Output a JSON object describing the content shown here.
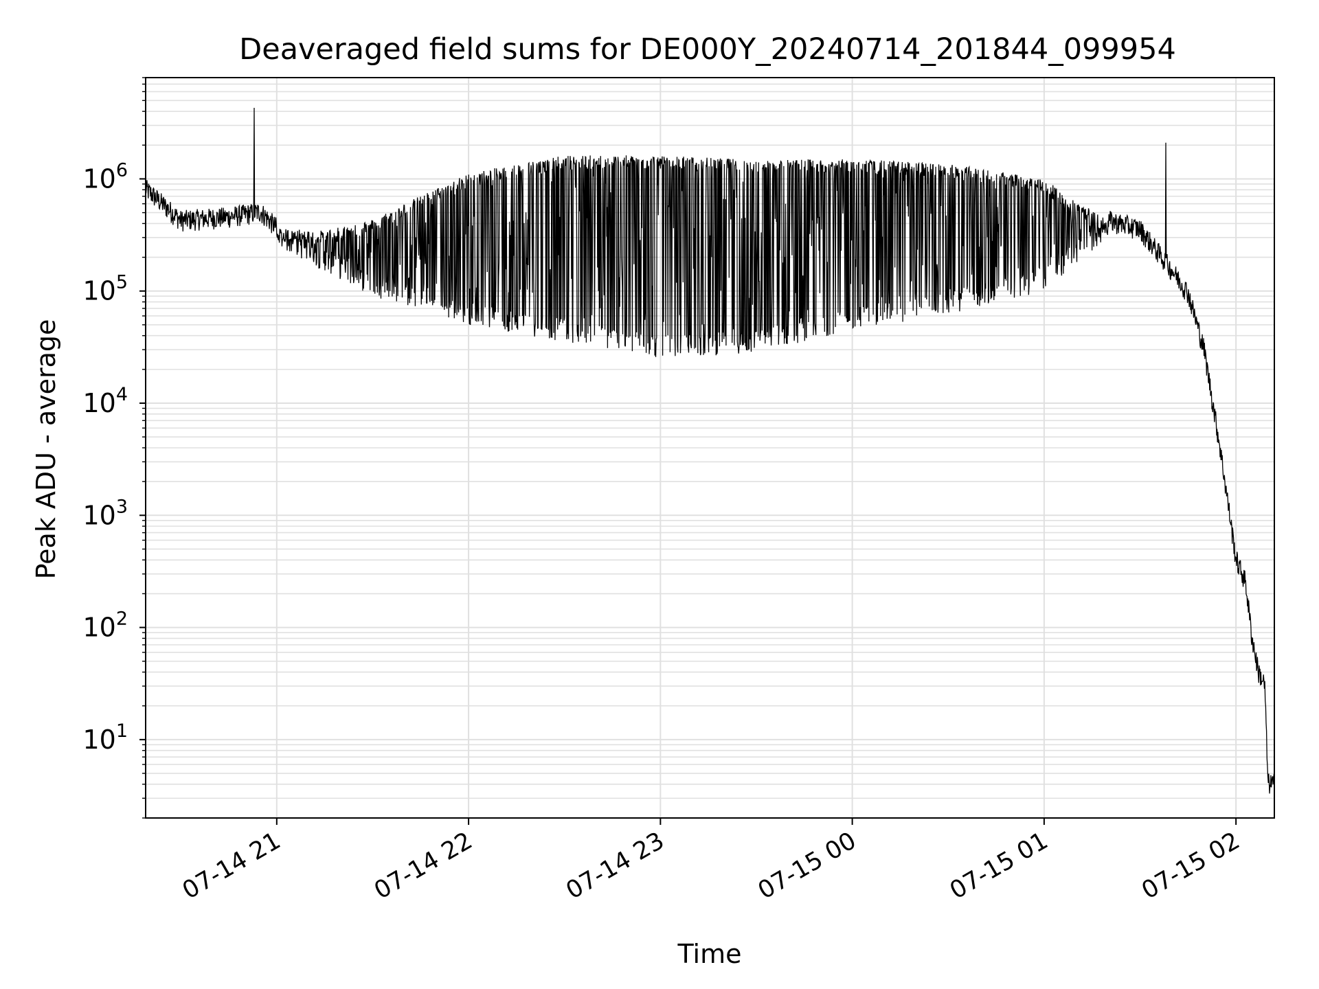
{
  "chart_data": {
    "type": "line",
    "title": "Deaveraged field sums for DE000Y_20240714_201844_099954",
    "xlabel": "Time",
    "ylabel": "Peak ADU - average",
    "yscale": "log",
    "grid": true,
    "line_color": "#000000",
    "grid_color": "#e0e0e0",
    "xlim": [
      "2024-07-14 20:19",
      "2024-07-15 02:12"
    ],
    "ylim": [
      2,
      8000000
    ],
    "x_ticks": [
      "07-14 21",
      "07-14 22",
      "07-14 23",
      "07-15 00",
      "07-15 01",
      "07-15 02"
    ],
    "y_ticks": [
      {
        "value": 10,
        "base": "10",
        "exp": "1"
      },
      {
        "value": 100,
        "base": "10",
        "exp": "2"
      },
      {
        "value": 1000,
        "base": "10",
        "exp": "3"
      },
      {
        "value": 10000,
        "base": "10",
        "exp": "4"
      },
      {
        "value": 100000,
        "base": "10",
        "exp": "5"
      },
      {
        "value": 1000000,
        "base": "10",
        "exp": "6"
      }
    ],
    "series": [
      {
        "baseline": {
          "x": [
            "2024-07-14 20:19",
            "2024-07-14 20:30",
            "2024-07-14 20:45",
            "2024-07-14 20:55",
            "2024-07-14 21:00",
            "2024-07-14 21:15",
            "2024-07-14 21:30",
            "2024-07-14 22:00",
            "2024-07-14 22:30",
            "2024-07-14 23:00",
            "2024-07-14 23:30",
            "2024-07-15 00:00",
            "2024-07-15 00:30",
            "2024-07-15 01:00",
            "2024-07-15 01:20",
            "2024-07-15 01:30",
            "2024-07-15 01:40",
            "2024-07-15 01:45",
            "2024-07-15 01:50",
            "2024-07-15 01:55",
            "2024-07-15 02:00",
            "2024-07-15 02:03",
            "2024-07-15 02:05",
            "2024-07-15 02:07",
            "2024-07-15 02:09",
            "2024-07-15 02:10",
            "2024-07-15 02:11",
            "2024-07-15 02:12"
          ],
          "y": [
            800000,
            420000,
            450000,
            500000,
            360000,
            280000,
            300000,
            600000,
            750000,
            700000,
            650000,
            720000,
            780000,
            750000,
            420000,
            350000,
            150000,
            95000,
            30000,
            4000,
            400,
            250,
            80,
            40,
            30,
            4,
            4,
            4
          ]
        },
        "dips": {
          "x_range": [
            "2024-07-14 21:00",
            "2024-07-15 01:20"
          ],
          "min": [
            {
              "x": "2024-07-14 21:00",
              "y": 250000
            },
            {
              "x": "2024-07-14 21:30",
              "y": 90000
            },
            {
              "x": "2024-07-14 22:00",
              "y": 50000
            },
            {
              "x": "2024-07-14 22:30",
              "y": 35000
            },
            {
              "x": "2024-07-14 23:00",
              "y": 25000
            },
            {
              "x": "2024-07-14 23:30",
              "y": 28000
            },
            {
              "x": "2024-07-15 00:00",
              "y": 45000
            },
            {
              "x": "2024-07-15 00:30",
              "y": 60000
            },
            {
              "x": "2024-07-15 01:00",
              "y": 100000
            },
            {
              "x": "2024-07-15 01:20",
              "y": 300000
            }
          ],
          "max_y": 1700000
        },
        "spikes": [
          {
            "x": "2024-07-14 20:53",
            "y": 4300000
          },
          {
            "x": "2024-07-15 01:38",
            "y": 2100000
          }
        ]
      }
    ]
  }
}
